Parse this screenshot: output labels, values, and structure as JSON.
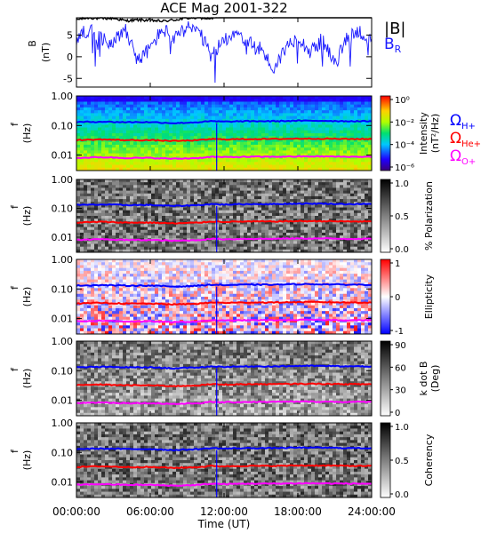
{
  "title": "ACE Mag 2001-322",
  "x_tick_labels": [
    "00:00:00",
    "06:00:00",
    "12:00:00",
    "18:00:00",
    "24:00:00"
  ],
  "x_axis_label": "Time (UT)",
  "colors": {
    "b_total": "#000000",
    "b_radial": "#1a1aff",
    "h_plus": "#0000ff",
    "he_plus": "#ff0000",
    "o_plus": "#ff00ff"
  },
  "legend": {
    "b_total": "|B|",
    "b_radial": "B",
    "b_radial_sub": "R",
    "h_plus": "Ω",
    "h_plus_sub": "H+",
    "he_plus": "Ω",
    "he_plus_sub": "He+",
    "o_plus": "Ω",
    "o_plus_sub": "O+"
  },
  "chart_data": [
    {
      "type": "line",
      "panel": "magnetic-field",
      "ylabel": "B",
      "yunit": "(nT)",
      "y_tick_labels": [
        "5",
        "0",
        "-5"
      ],
      "ylim": [
        -7,
        9
      ],
      "xlim_hours": [
        0,
        24
      ],
      "series": [
        {
          "name": "|B|",
          "x_hours": [
            0,
            1,
            2,
            3,
            4,
            5,
            6,
            7,
            8,
            9,
            10,
            11,
            12,
            13,
            14,
            15,
            16,
            17,
            18,
            19,
            20,
            21,
            22,
            23,
            24
          ],
          "values": [
            8.6,
            9.0,
            8.8,
            8.9,
            8.3,
            8.5,
            8.4,
            8.2,
            8.5,
            8.9,
            9.0,
            8.8,
            9.3,
            9.4,
            9.2,
            9.4,
            9.2,
            9.3,
            9.6,
            9.8,
            9.6,
            9.5,
            9.7,
            9.9,
            9.8
          ]
        },
        {
          "name": "B_R",
          "x_hours": [
            0,
            1,
            2,
            3,
            4,
            5,
            6,
            7,
            8,
            9,
            10,
            11,
            12,
            13,
            14,
            15,
            16,
            17,
            18,
            19,
            20,
            21,
            22,
            23,
            24
          ],
          "values": [
            4.0,
            6.5,
            4.0,
            3.5,
            6.5,
            -1.0,
            2.0,
            6.5,
            4.0,
            7.0,
            5.5,
            0.0,
            4.0,
            6.0,
            3.0,
            2.0,
            -3.0,
            2.0,
            5.0,
            1.0,
            4.0,
            -2.0,
            4.5,
            6.0,
            3.0
          ]
        }
      ]
    },
    {
      "type": "heatmap",
      "panel": "power-spectral-density",
      "ylabel": "f",
      "yunit": "(Hz)",
      "y_scale": "log",
      "ylim": [
        0.003,
        1.0
      ],
      "y_tick_labels": [
        "1.00",
        "0.10",
        "0.01"
      ],
      "colorbar_label": "Intensity",
      "colorbar_unit": "(nT²/Hz)",
      "colorbar_ticks": [
        "10⁰",
        "10⁻²",
        "10⁻⁴",
        "10⁻⁶"
      ],
      "colorbar_scale": "log",
      "colormap": "rainbow"
    },
    {
      "type": "heatmap",
      "panel": "percent-polarization",
      "ylabel": "f",
      "yunit": "(Hz)",
      "y_scale": "log",
      "ylim": [
        0.003,
        1.0
      ],
      "y_tick_labels": [
        "1.00",
        "0.10",
        "0.01"
      ],
      "colorbar_label": "% Polarization",
      "colorbar_ticks": [
        "1.0",
        "0.5",
        "0.0"
      ],
      "colormap": "gray"
    },
    {
      "type": "heatmap",
      "panel": "ellipticity",
      "ylabel": "f",
      "yunit": "(Hz)",
      "y_scale": "log",
      "ylim": [
        0.003,
        1.0
      ],
      "y_tick_labels": [
        "1.00",
        "0.10",
        "0.01"
      ],
      "colorbar_label": "Ellipticity",
      "colorbar_ticks": [
        "1",
        "0",
        "-1"
      ],
      "colormap": "blue-white-red"
    },
    {
      "type": "heatmap",
      "panel": "wave-normal-angle",
      "ylabel": "f",
      "yunit": "(Hz)",
      "y_scale": "log",
      "ylim": [
        0.003,
        1.0
      ],
      "y_tick_labels": [
        "1.00",
        "0.10",
        "0.01"
      ],
      "colorbar_label": "k dot B",
      "colorbar_unit": "(Deg)",
      "colorbar_ticks": [
        "90",
        "60",
        "30",
        "0"
      ],
      "colormap": "gray"
    },
    {
      "type": "heatmap",
      "panel": "coherency",
      "ylabel": "f",
      "yunit": "(Hz)",
      "y_scale": "log",
      "ylim": [
        0.003,
        1.0
      ],
      "y_tick_labels": [
        "1.00",
        "0.10",
        "0.01"
      ],
      "colorbar_label": "Coherency",
      "colorbar_ticks": [
        "1.0",
        "0.5",
        "0.0"
      ],
      "colormap": "gray"
    }
  ],
  "gyrofrequency_lines": {
    "x_hours": [
      0,
      2,
      4,
      6,
      8,
      10,
      11,
      12,
      14,
      16,
      18,
      20,
      22,
      24
    ],
    "h_plus_hz": [
      0.13,
      0.135,
      0.13,
      0.13,
      0.12,
      0.13,
      0.14,
      0.135,
      0.14,
      0.14,
      0.145,
      0.145,
      0.14,
      0.14
    ],
    "he_plus_hz": [
      0.032,
      0.034,
      0.032,
      0.032,
      0.03,
      0.032,
      0.035,
      0.034,
      0.035,
      0.035,
      0.036,
      0.036,
      0.035,
      0.035
    ],
    "o_plus_hz": [
      0.008,
      0.0085,
      0.008,
      0.008,
      0.0075,
      0.008,
      0.0088,
      0.0085,
      0.0088,
      0.0088,
      0.009,
      0.009,
      0.0088,
      0.0088
    ]
  }
}
